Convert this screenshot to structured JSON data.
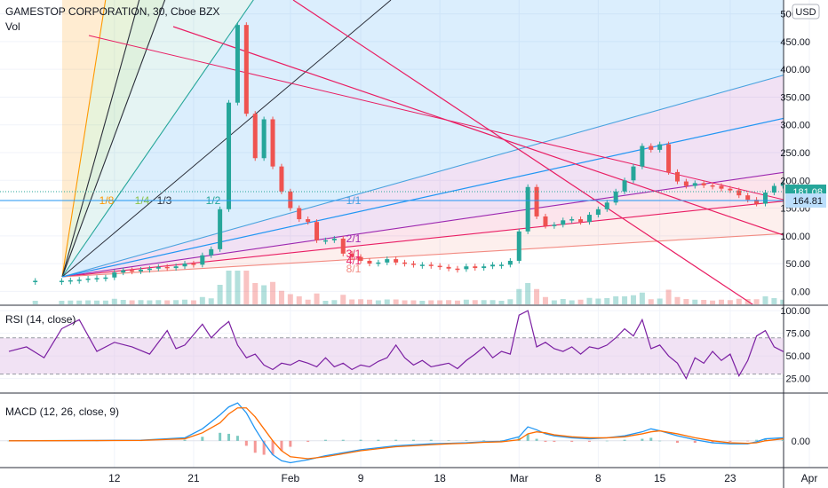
{
  "header": {
    "symbol_title": "GAMESTOP CORPORATION, 30, Cboe BZX",
    "volume_label": "Vol",
    "currency_badge": "USD"
  },
  "colors": {
    "candle_up": "#26a69a",
    "candle_down": "#ef5350",
    "gann_line": "#8b1c6d",
    "fan_main_line": "#26a69a",
    "fan_1_1": "#4aa3df",
    "fan_2_1": "#9c27b0",
    "fan_3_1": "#e91e63",
    "fan_8_1": "#f28b82",
    "channel_line": "#e91e63",
    "rsi_line": "#7b1fa2",
    "rsi_band": "#e1bee7",
    "macd_line": "#2196f3",
    "signal_line": "#ff6d00",
    "price_tag_1": "#26a69a",
    "price_tag_2": "#bbdefb"
  },
  "chart_data": [
    {
      "type": "line",
      "pane": "price",
      "title": "GAMESTOP CORPORATION, 30, Cboe BZX",
      "y_unit": "USD",
      "ylim": [
        -25,
        525
      ],
      "y_ticks": [
        "500.00",
        "450.00",
        "400.00",
        "350.00",
        "300.00",
        "250.00",
        "200.00",
        "150.00",
        "100.00",
        "50.00",
        "0.00"
      ],
      "y_tick_values": [
        500,
        450,
        400,
        350,
        300,
        250,
        200,
        150,
        100,
        50,
        0
      ],
      "x_ticks": [
        "12",
        "21",
        "Feb",
        "9",
        "18",
        "Mar",
        "8",
        "15",
        "23",
        "Apr"
      ],
      "x_tick_index": [
        12,
        21,
        32,
        40,
        49,
        58,
        67,
        74,
        82,
        91
      ],
      "x_range_index": [
        0,
        101
      ],
      "gann_fan_labels": [
        "1/8",
        "1/4",
        "1/3",
        "1/2",
        "1/1",
        "2/1",
        "3/1",
        "4/1",
        "8/1"
      ],
      "price_labels": [
        "181.08",
        "164.81"
      ],
      "series": [
        {
          "values": [
            [
              0,
              19
            ],
            [
              3,
              19
            ],
            [
              6,
              19
            ],
            [
              7,
              20
            ],
            [
              8,
              21
            ],
            [
              9,
              23
            ],
            [
              10,
              24
            ],
            [
              11,
              25
            ],
            [
              12,
              34
            ],
            [
              13,
              38
            ],
            [
              14,
              36
            ],
            [
              15,
              39
            ],
            [
              16,
              41
            ],
            [
              17,
              44
            ],
            [
              18,
              42
            ],
            [
              19,
              45
            ],
            [
              20,
              50
            ],
            [
              21,
              48
            ],
            [
              22,
              65
            ],
            [
              23,
              76
            ],
            [
              24,
              148
            ],
            [
              25,
              340
            ],
            [
              26,
              480
            ],
            [
              27,
              320
            ],
            [
              28,
              240
            ],
            [
              29,
              310
            ],
            [
              30,
              225
            ],
            [
              31,
              180
            ],
            [
              32,
              150
            ],
            [
              33,
              130
            ],
            [
              34,
              125
            ],
            [
              35,
              92
            ],
            [
              36,
              92
            ],
            [
              37,
              95
            ],
            [
              38,
              68
            ],
            [
              39,
              62
            ],
            [
              40,
              55
            ],
            [
              41,
              50
            ],
            [
              42,
              52
            ],
            [
              43,
              58
            ],
            [
              44,
              52
            ],
            [
              45,
              50
            ],
            [
              46,
              48
            ],
            [
              47,
              48
            ],
            [
              48,
              46
            ],
            [
              49,
              44
            ],
            [
              50,
              41
            ],
            [
              51,
              40
            ],
            [
              52,
              45
            ],
            [
              53,
              42
            ],
            [
              54,
              45
            ],
            [
              55,
              48
            ],
            [
              56,
              48
            ],
            [
              57,
              55
            ],
            [
              58,
              108
            ],
            [
              59,
              188
            ],
            [
              60,
              135
            ],
            [
              61,
              118
            ],
            [
              62,
              120
            ],
            [
              63,
              128
            ],
            [
              64,
              130
            ],
            [
              65,
              125
            ],
            [
              66,
              138
            ],
            [
              67,
              148
            ],
            [
              68,
              160
            ],
            [
              69,
              180
            ],
            [
              70,
              200
            ],
            [
              71,
              225
            ],
            [
              72,
              262
            ],
            [
              73,
              255
            ],
            [
              74,
              265
            ],
            [
              75,
              215
            ],
            [
              76,
              198
            ],
            [
              77,
              190
            ],
            [
              78,
              195
            ],
            [
              79,
              191
            ],
            [
              80,
              190
            ],
            [
              81,
              185
            ],
            [
              82,
              182
            ],
            [
              83,
              173
            ],
            [
              84,
              165
            ],
            [
              85,
              158
            ],
            [
              86,
              178
            ],
            [
              87,
              190
            ],
            [
              88,
              195
            ],
            [
              89,
              192
            ],
            [
              90,
              185
            ],
            [
              91,
              181
            ]
          ]
        }
      ]
    },
    {
      "type": "line",
      "pane": "rsi",
      "title": "RSI (14, close)",
      "ylim": [
        10,
        105
      ],
      "y_ticks": [
        "100.00",
        "75.00",
        "50.00",
        "25.00"
      ],
      "y_tick_values": [
        100,
        75,
        50,
        25
      ],
      "band": [
        30,
        70
      ],
      "series": [
        {
          "values": [
            [
              0,
              55
            ],
            [
              2,
              60
            ],
            [
              4,
              48
            ],
            [
              6,
              80
            ],
            [
              8,
              90
            ],
            [
              10,
              55
            ],
            [
              12,
              65
            ],
            [
              14,
              60
            ],
            [
              16,
              52
            ],
            [
              18,
              78
            ],
            [
              19,
              58
            ],
            [
              20,
              62
            ],
            [
              22,
              85
            ],
            [
              23,
              70
            ],
            [
              24,
              80
            ],
            [
              25,
              88
            ],
            [
              26,
              62
            ],
            [
              27,
              48
            ],
            [
              28,
              52
            ],
            [
              29,
              40
            ],
            [
              30,
              35
            ],
            [
              31,
              42
            ],
            [
              32,
              40
            ],
            [
              33,
              45
            ],
            [
              34,
              42
            ],
            [
              35,
              38
            ],
            [
              36,
              48
            ],
            [
              37,
              38
            ],
            [
              38,
              42
            ],
            [
              39,
              35
            ],
            [
              40,
              40
            ],
            [
              41,
              38
            ],
            [
              42,
              44
            ],
            [
              43,
              48
            ],
            [
              44,
              62
            ],
            [
              45,
              48
            ],
            [
              46,
              40
            ],
            [
              47,
              45
            ],
            [
              48,
              38
            ],
            [
              49,
              40
            ],
            [
              50,
              42
            ],
            [
              51,
              36
            ],
            [
              52,
              45
            ],
            [
              53,
              52
            ],
            [
              54,
              60
            ],
            [
              55,
              48
            ],
            [
              56,
              55
            ],
            [
              57,
              52
            ],
            [
              58,
              95
            ],
            [
              59,
              100
            ],
            [
              60,
              60
            ],
            [
              61,
              65
            ],
            [
              62,
              58
            ],
            [
              63,
              55
            ],
            [
              64,
              60
            ],
            [
              65,
              52
            ],
            [
              66,
              60
            ],
            [
              67,
              58
            ],
            [
              68,
              62
            ],
            [
              69,
              70
            ],
            [
              70,
              80
            ],
            [
              71,
              72
            ],
            [
              72,
              90
            ],
            [
              73,
              58
            ],
            [
              74,
              62
            ],
            [
              75,
              50
            ],
            [
              76,
              42
            ],
            [
              77,
              25
            ],
            [
              78,
              48
            ],
            [
              79,
              42
            ],
            [
              80,
              55
            ],
            [
              81,
              45
            ],
            [
              82,
              52
            ],
            [
              83,
              28
            ],
            [
              84,
              45
            ],
            [
              85,
              72
            ],
            [
              86,
              78
            ],
            [
              87,
              60
            ],
            [
              88,
              55
            ],
            [
              89,
              52
            ],
            [
              90,
              50
            ],
            [
              91,
              51
            ]
          ]
        }
      ]
    },
    {
      "type": "line",
      "pane": "macd",
      "title": "MACD (12, 26, close, 9)",
      "ylim": [
        -26,
        47
      ],
      "y_ticks": [
        "0.00"
      ],
      "y_tick_values": [
        0
      ],
      "series": [
        {
          "name": "MACD",
          "values": [
            [
              0,
              0
            ],
            [
              10,
              0.3
            ],
            [
              15,
              0.6
            ],
            [
              20,
              3
            ],
            [
              22,
              12
            ],
            [
              24,
              26
            ],
            [
              25,
              34
            ],
            [
              26,
              38
            ],
            [
              27,
              28
            ],
            [
              28,
              12
            ],
            [
              29,
              -2
            ],
            [
              30,
              -14
            ],
            [
              31,
              -20
            ],
            [
              32,
              -22
            ],
            [
              34,
              -19
            ],
            [
              36,
              -15
            ],
            [
              38,
              -12
            ],
            [
              40,
              -9
            ],
            [
              42,
              -7
            ],
            [
              44,
              -5
            ],
            [
              46,
              -4
            ],
            [
              48,
              -3
            ],
            [
              50,
              -2.5
            ],
            [
              52,
              -2
            ],
            [
              54,
              -1
            ],
            [
              56,
              -0.5
            ],
            [
              58,
              4
            ],
            [
              59,
              14
            ],
            [
              60,
              11
            ],
            [
              61,
              7
            ],
            [
              62,
              5
            ],
            [
              64,
              3
            ],
            [
              66,
              2
            ],
            [
              68,
              3
            ],
            [
              70,
              5
            ],
            [
              72,
              9
            ],
            [
              73,
              12
            ],
            [
              74,
              10
            ],
            [
              76,
              5
            ],
            [
              78,
              1
            ],
            [
              80,
              -2
            ],
            [
              82,
              -3
            ],
            [
              84,
              -3
            ],
            [
              85,
              -1
            ],
            [
              86,
              2
            ],
            [
              88,
              3
            ],
            [
              90,
              1
            ],
            [
              91,
              0.5
            ]
          ]
        },
        {
          "name": "Signal",
          "values": [
            [
              0,
              0
            ],
            [
              10,
              0.2
            ],
            [
              15,
              0.4
            ],
            [
              20,
              2
            ],
            [
              22,
              8
            ],
            [
              24,
              18
            ],
            [
              25,
              27
            ],
            [
              26,
              33
            ],
            [
              27,
              33
            ],
            [
              28,
              24
            ],
            [
              29,
              12
            ],
            [
              30,
              0
            ],
            [
              31,
              -10
            ],
            [
              32,
              -16
            ],
            [
              34,
              -18
            ],
            [
              36,
              -16
            ],
            [
              38,
              -13
            ],
            [
              40,
              -10
            ],
            [
              42,
              -8
            ],
            [
              44,
              -6
            ],
            [
              46,
              -5
            ],
            [
              48,
              -4
            ],
            [
              50,
              -3
            ],
            [
              52,
              -2.5
            ],
            [
              54,
              -1.5
            ],
            [
              56,
              -1
            ],
            [
              58,
              1
            ],
            [
              59,
              7
            ],
            [
              60,
              9
            ],
            [
              61,
              8
            ],
            [
              62,
              6
            ],
            [
              64,
              4
            ],
            [
              66,
              3
            ],
            [
              68,
              3
            ],
            [
              70,
              4
            ],
            [
              72,
              7
            ],
            [
              73,
              9
            ],
            [
              74,
              10
            ],
            [
              76,
              7
            ],
            [
              78,
              3
            ],
            [
              80,
              0
            ],
            [
              82,
              -2
            ],
            [
              84,
              -2.5
            ],
            [
              85,
              -2
            ],
            [
              86,
              0
            ],
            [
              88,
              2
            ],
            [
              90,
              1.5
            ],
            [
              91,
              1
            ]
          ]
        }
      ]
    }
  ]
}
